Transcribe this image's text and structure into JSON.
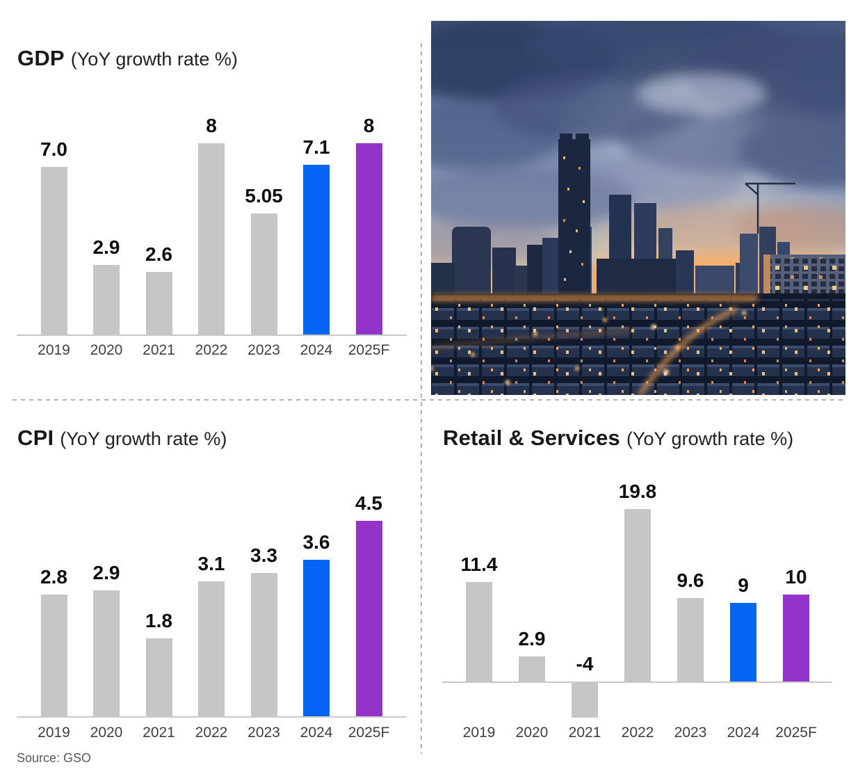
{
  "page": {
    "background": "#ffffff"
  },
  "colors": {
    "bar_gray": "#c6c6c7",
    "bar_blue": "#0564f1",
    "bar_purple": "#9433c9",
    "axis_line": "#c8c8c8",
    "title_text": "#181818",
    "year_label_text": "#404040",
    "divider": "#b3b3b3"
  },
  "source": {
    "label": "Source: GSO"
  },
  "photo": {
    "name": "city-skyline-sunset-photo"
  },
  "chart_data": [
    {
      "type": "bar",
      "title": "GDP",
      "subtitle": "(YoY growth rate %)",
      "categories": [
        "2019",
        "2020",
        "2021",
        "2022",
        "2023",
        "2024",
        "2025F"
      ],
      "values": [
        7.0,
        2.9,
        2.6,
        8,
        5.05,
        7.1,
        8
      ],
      "value_labels": [
        "7.0",
        "2.9",
        "2.6",
        "8",
        "5.05",
        "7.1",
        "8"
      ],
      "bar_colors": [
        "gray",
        "gray",
        "gray",
        "gray",
        "gray",
        "blue",
        "purple"
      ],
      "xlabel": "",
      "ylabel": "",
      "ylim": [
        0,
        9
      ],
      "grid": false,
      "legend": "none"
    },
    {
      "type": "bar",
      "title": "CPI",
      "subtitle": "(YoY growth rate %)",
      "categories": [
        "2019",
        "2020",
        "2021",
        "2022",
        "2023",
        "2024",
        "2025F"
      ],
      "values": [
        2.8,
        2.9,
        1.8,
        3.1,
        3.3,
        3.6,
        4.5
      ],
      "value_labels": [
        "2.8",
        "2.9",
        "1.8",
        "3.1",
        "3.3",
        "3.6",
        "4.5"
      ],
      "bar_colors": [
        "gray",
        "gray",
        "gray",
        "gray",
        "gray",
        "blue",
        "purple"
      ],
      "xlabel": "",
      "ylabel": "",
      "ylim": [
        0,
        5
      ],
      "grid": false,
      "legend": "none"
    },
    {
      "type": "bar",
      "title": "Retail & Services",
      "subtitle": "(YoY growth rate %)",
      "categories": [
        "2019",
        "2020",
        "2021",
        "2022",
        "2023",
        "2024",
        "2025F"
      ],
      "values": [
        11.4,
        2.9,
        -4,
        19.8,
        9.6,
        9,
        10
      ],
      "value_labels": [
        "11.4",
        "2.9",
        "-4",
        "19.8",
        "9.6",
        "9",
        "10"
      ],
      "bar_colors": [
        "gray",
        "gray",
        "gray",
        "gray",
        "gray",
        "blue",
        "purple"
      ],
      "xlabel": "",
      "ylabel": "",
      "ylim": [
        -6,
        22
      ],
      "grid": false,
      "legend": "none"
    }
  ]
}
